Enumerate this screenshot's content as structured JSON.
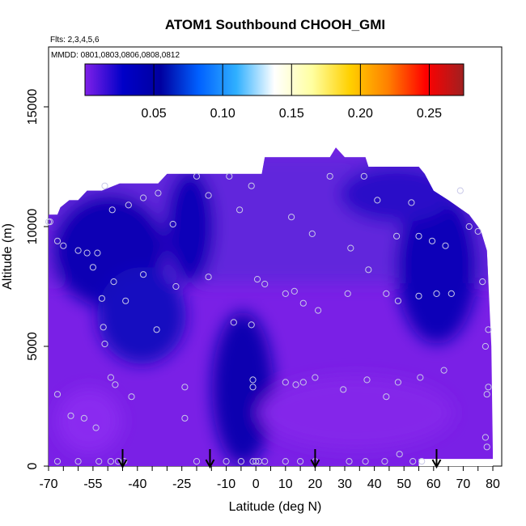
{
  "chart_data": {
    "type": "heatmap",
    "title": "ATOM1 Southbound CHOOH_GMI",
    "flights_label": "Flts: 2,3,4,5,6",
    "dates_label": "MMDD: 0801,0803,0806,0808,0812",
    "xlabel": "Latitude (deg N)",
    "ylabel": "Altitude (m)",
    "xlim": [
      -70,
      83
    ],
    "ylim": [
      0,
      17500
    ],
    "x_ticks": [
      -70,
      -55,
      -40,
      -25,
      -10,
      0,
      10,
      20,
      30,
      40,
      50,
      60,
      70,
      80
    ],
    "x_tick_labels": [
      "-70",
      "-55",
      "-40",
      "-25",
      "-10",
      "0",
      "10",
      "20",
      "30",
      "40",
      "50",
      "60",
      "70",
      "80"
    ],
    "y_ticks": [
      0,
      5000,
      10000,
      15000
    ],
    "y_tick_labels": [
      "0",
      "5000",
      "10000",
      "15000"
    ],
    "colorbar": {
      "min": 0.0,
      "max": 0.275,
      "ticks": [
        0.05,
        0.1,
        0.15,
        0.2,
        0.25
      ],
      "tick_labels": [
        "0.05",
        "0.10",
        "0.15",
        "0.20",
        "0.25"
      ],
      "colors": [
        "#8020e8",
        "#0000c8",
        "#0000a0",
        "#0060ff",
        "#30b0ff",
        "#ffffff",
        "#ffffa0",
        "#ffd000",
        "#ff8000",
        "#ff0000",
        "#a02020"
      ]
    },
    "colors": {
      "upper_mid": "#5a2ad8",
      "background_purple": "#7a20e6",
      "deep_blue": "#0a00b4",
      "mid_blue": "#2a10c8",
      "light_purple": "#8a2cf0"
    },
    "profile_top_altitude": [
      [
        -70,
        10500
      ],
      [
        -67,
        10500
      ],
      [
        -66,
        10800
      ],
      [
        -63,
        11100
      ],
      [
        -60,
        11100
      ],
      [
        -57,
        11500
      ],
      [
        -52,
        11500
      ],
      [
        -46,
        11800
      ],
      [
        -33,
        11800
      ],
      [
        -30,
        12200
      ],
      [
        -7,
        12200
      ],
      [
        2,
        12200
      ],
      [
        3,
        12900
      ],
      [
        25,
        12900
      ],
      [
        27,
        13300
      ],
      [
        30,
        12900
      ],
      [
        37,
        12900
      ],
      [
        38,
        12500
      ],
      [
        55,
        12500
      ],
      [
        57,
        12200
      ],
      [
        60,
        11500
      ],
      [
        65,
        11100
      ],
      [
        72,
        10500
      ],
      [
        75,
        10000
      ],
      [
        76,
        9800
      ],
      [
        78,
        9000
      ],
      [
        79.5,
        5000
      ],
      [
        80,
        600
      ],
      [
        80,
        0
      ]
    ],
    "gap_region": {
      "x": [
        55,
        80
      ],
      "y": [
        0,
        300
      ]
    },
    "points": [
      [
        -70,
        10200
      ],
      [
        -69.5,
        10200
      ],
      [
        -67,
        9400
      ],
      [
        -65,
        9200
      ],
      [
        -60,
        9000
      ],
      [
        -57,
        8900
      ],
      [
        -55,
        8300
      ],
      [
        -53.5,
        8900
      ],
      [
        -51,
        11700
      ],
      [
        -48.5,
        10700
      ],
      [
        -43,
        10900
      ],
      [
        -38,
        11200
      ],
      [
        -33,
        11400
      ],
      [
        -28,
        10100
      ],
      [
        -20,
        12100
      ],
      [
        -16,
        11300
      ],
      [
        -9,
        12100
      ],
      [
        -5.5,
        10700
      ],
      [
        -1.5,
        11700
      ],
      [
        12,
        10400
      ],
      [
        19,
        9700
      ],
      [
        25,
        12100
      ],
      [
        32,
        9100
      ],
      [
        36.5,
        12100
      ],
      [
        41,
        11100
      ],
      [
        47.5,
        9600
      ],
      [
        52.5,
        11000
      ],
      [
        55,
        9600
      ],
      [
        59.5,
        9400
      ],
      [
        64,
        9200
      ],
      [
        69,
        11500
      ],
      [
        72,
        10000
      ],
      [
        75,
        9800
      ],
      [
        -52,
        7000
      ],
      [
        -51.5,
        5800
      ],
      [
        -51,
        5100
      ],
      [
        -48,
        7700
      ],
      [
        -44,
        6900
      ],
      [
        -38,
        8000
      ],
      [
        -33.5,
        5700
      ],
      [
        -27,
        7500
      ],
      [
        -16,
        7900
      ],
      [
        -7.5,
        6000
      ],
      [
        -1.5,
        5900
      ],
      [
        0.5,
        7800
      ],
      [
        3,
        7600
      ],
      [
        10,
        7200
      ],
      [
        13,
        7300
      ],
      [
        16,
        6800
      ],
      [
        21,
        6500
      ],
      [
        31,
        7200
      ],
      [
        38,
        8200
      ],
      [
        44,
        7200
      ],
      [
        48,
        6900
      ],
      [
        55,
        7100
      ],
      [
        61,
        7200
      ],
      [
        66,
        7200
      ],
      [
        76.5,
        7700
      ],
      [
        78.5,
        5700
      ],
      [
        77.5,
        5000
      ],
      [
        -67,
        3000
      ],
      [
        -62.5,
        2100
      ],
      [
        -58,
        2000
      ],
      [
        -54,
        1600
      ],
      [
        -49,
        3700
      ],
      [
        -47.5,
        3400
      ],
      [
        -42,
        2900
      ],
      [
        -24,
        3300
      ],
      [
        -24,
        2000
      ],
      [
        -1,
        3600
      ],
      [
        -1,
        3300
      ],
      [
        10,
        3500
      ],
      [
        13.5,
        3400
      ],
      [
        16,
        3500
      ],
      [
        20,
        3700
      ],
      [
        29.5,
        3200
      ],
      [
        37.5,
        3600
      ],
      [
        44,
        2900
      ],
      [
        48,
        3500
      ],
      [
        55.5,
        3700
      ],
      [
        63.5,
        4000
      ],
      [
        78.5,
        3300
      ],
      [
        78,
        3000
      ],
      [
        77.5,
        1200
      ],
      [
        78,
        800
      ],
      [
        -67,
        200
      ],
      [
        -60,
        200
      ],
      [
        -53,
        200
      ],
      [
        -49,
        200
      ],
      [
        -46.5,
        200
      ],
      [
        -44.5,
        200
      ],
      [
        -20,
        200
      ],
      [
        -10,
        200
      ],
      [
        -5,
        200
      ],
      [
        -1,
        200
      ],
      [
        0,
        200
      ],
      [
        1,
        200
      ],
      [
        3,
        200
      ],
      [
        10,
        200
      ],
      [
        15,
        200
      ],
      [
        20,
        200
      ],
      [
        31.5,
        200
      ],
      [
        37,
        200
      ],
      [
        43.5,
        200
      ],
      [
        48.5,
        500
      ],
      [
        53,
        200
      ],
      [
        56,
        200
      ]
    ],
    "arrows_x": [
      -45,
      -15.5,
      20,
      61
    ]
  }
}
